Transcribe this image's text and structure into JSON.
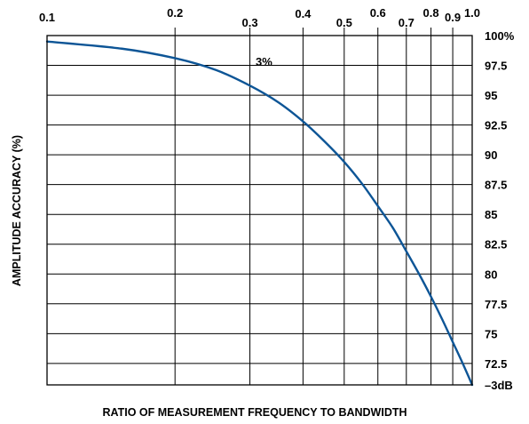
{
  "chart_data": {
    "type": "line",
    "title": "",
    "xlabel": "RATIO OF MEASUREMENT FREQUENCY TO BANDWIDTH",
    "ylabel": "AMPLITUDE ACCURACY (%)",
    "x_scale": "log",
    "xlim": [
      0.1,
      1.0
    ],
    "ylim": [
      70.7,
      100
    ],
    "x_ticks": [
      {
        "value": 0.1,
        "label": "0.1"
      },
      {
        "value": 0.2,
        "label": "0.2"
      },
      {
        "value": 0.3,
        "label": "0.3"
      },
      {
        "value": 0.4,
        "label": "0.4"
      },
      {
        "value": 0.5,
        "label": "0.5"
      },
      {
        "value": 0.6,
        "label": "0.6"
      },
      {
        "value": 0.7,
        "label": "0.7"
      },
      {
        "value": 0.8,
        "label": "0.8"
      },
      {
        "value": 0.9,
        "label": "0.9"
      },
      {
        "value": 1.0,
        "label": "1.0"
      }
    ],
    "y_ticks": [
      {
        "value": 100,
        "label": "100%"
      },
      {
        "value": 97.5,
        "label": "97.5"
      },
      {
        "value": 95,
        "label": "95"
      },
      {
        "value": 92.5,
        "label": "92.5"
      },
      {
        "value": 90,
        "label": "90"
      },
      {
        "value": 87.5,
        "label": "87.5"
      },
      {
        "value": 85,
        "label": "85"
      },
      {
        "value": 82.5,
        "label": "82.5"
      },
      {
        "value": 80,
        "label": "80"
      },
      {
        "value": 77.5,
        "label": "77.5"
      },
      {
        "value": 75,
        "label": "75"
      },
      {
        "value": 72.5,
        "label": "72.5"
      },
      {
        "value": 70.7,
        "label": "–3dB"
      }
    ],
    "grid": true,
    "series": [
      {
        "color": "#0d5596",
        "x": [
          0.1,
          0.15,
          0.2,
          0.25,
          0.3,
          0.35,
          0.4,
          0.45,
          0.5,
          0.55,
          0.6,
          0.65,
          0.7,
          0.75,
          0.8,
          0.85,
          0.9,
          0.95,
          1.0
        ],
        "y": [
          99.5,
          98.9,
          98.1,
          97.1,
          95.8,
          94.4,
          92.8,
          91.1,
          89.4,
          87.6,
          85.7,
          83.9,
          81.9,
          80.0,
          78.1,
          76.2,
          74.3,
          72.5,
          70.7
        ]
      }
    ],
    "annotations": [
      {
        "text": "3%",
        "x": 0.305,
        "y": 97.0
      }
    ]
  }
}
